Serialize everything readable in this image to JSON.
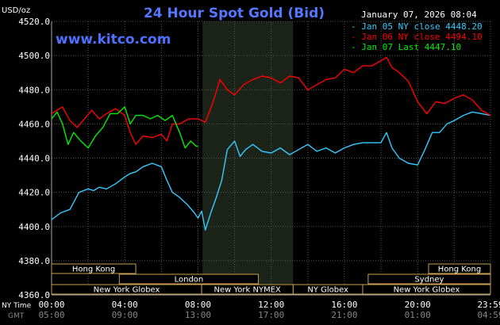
{
  "chart_data": {
    "type": "line",
    "title": "24 Hour Spot Gold (Bid)",
    "date": "January 07, 2026 08:04",
    "ylabel": "USD/oz",
    "watermark": "www.kitco.com",
    "ylim": [
      4360,
      4520
    ],
    "y_ticks": [
      "4520.0",
      "4500.0",
      "4480.0",
      "4460.0",
      "4440.0",
      "4420.0",
      "4400.0",
      "4380.0",
      "4360.0"
    ],
    "y_tick_values": [
      4520,
      4500,
      4480,
      4460,
      4440,
      4420,
      4400,
      4380,
      4360
    ],
    "x_ticks_ny": [
      "00:00",
      "04:00",
      "08:00",
      "12:00",
      "16:00",
      "20:00",
      "23:59"
    ],
    "x_ticks_gmt": [
      "05:00",
      "09:00",
      "13:00",
      "17:00",
      "21:00",
      "01:00",
      "04:59"
    ],
    "x_tick_hours": [
      0,
      4,
      8,
      12,
      16,
      20,
      23.983
    ],
    "x_row_labels": {
      "ny": "NY Time",
      "gmt": "GMT"
    },
    "highlight_range_hours": [
      8.25,
      13.2
    ],
    "grid": true,
    "legend_position": "top-right",
    "series": [
      {
        "name": "Jan 05 NY close 4448.20",
        "color": "#33ccff",
        "x": [
          0,
          0.5,
          1,
          1.5,
          2,
          2.3,
          2.6,
          3,
          3.5,
          4,
          4.3,
          4.6,
          5,
          5.5,
          6,
          6.3,
          6.6,
          7,
          7.4,
          7.8,
          8,
          8.2,
          8.4,
          8.7,
          9,
          9.3,
          9.6,
          10,
          10.3,
          10.6,
          11,
          11.5,
          12,
          12.5,
          13,
          13.5,
          14,
          14.5,
          15,
          15.5,
          16,
          16.5,
          17,
          17.5,
          18,
          18.3,
          18.6,
          19,
          19.5,
          20,
          20.4,
          20.8,
          21.2,
          21.6,
          22,
          22.5,
          23,
          23.5,
          23.983
        ],
        "values": [
          4404,
          4408,
          4410,
          4420,
          4422,
          4421,
          4423,
          4422,
          4425,
          4429,
          4431,
          4432,
          4435,
          4437,
          4435,
          4427,
          4420,
          4417,
          4413,
          4408,
          4405,
          4409,
          4398,
          4408,
          4417,
          4427,
          4445,
          4450,
          4441,
          4445,
          4448,
          4444,
          4443,
          4446,
          4442,
          4445,
          4448,
          4444,
          4446,
          4443,
          4446,
          4448,
          4449,
          4449,
          4449,
          4455,
          4446,
          4440,
          4437,
          4436,
          4445,
          4455,
          4455,
          4460,
          4462,
          4465,
          4467,
          4466,
          4465
        ]
      },
      {
        "name": "Jan 06 NY close 4494.10",
        "color": "#ff0000",
        "x": [
          0,
          0.3,
          0.6,
          1,
          1.4,
          1.8,
          2.2,
          2.6,
          3,
          3.5,
          4,
          4.3,
          4.6,
          5,
          5.5,
          6,
          6.3,
          6.6,
          7,
          7.5,
          8,
          8.4,
          8.8,
          9.2,
          9.6,
          10,
          10.5,
          11,
          11.5,
          12,
          12.5,
          13,
          13.5,
          14,
          14.5,
          15,
          15.5,
          16,
          16.5,
          17,
          17.5,
          18,
          18.3,
          18.6,
          19,
          19.5,
          20,
          20.5,
          21,
          21.5,
          22,
          22.5,
          23,
          23.5,
          23.983
        ],
        "values": [
          4466,
          4468,
          4470,
          4462,
          4458,
          4463,
          4468,
          4463,
          4466,
          4469,
          4465,
          4455,
          4448,
          4453,
          4452,
          4454,
          4450,
          4460,
          4460,
          4463,
          4463,
          4461,
          4472,
          4486,
          4480,
          4477,
          4483,
          4486,
          4488,
          4487,
          4484,
          4488,
          4487,
          4480,
          4483,
          4486,
          4487,
          4492,
          4490,
          4494,
          4494,
          4497,
          4499,
          4493,
          4490,
          4485,
          4473,
          4466,
          4473,
          4472,
          4475,
          4477,
          4474,
          4468,
          4465
        ]
      },
      {
        "name": "Jan 07 Last 4447.10",
        "color": "#00ee00",
        "x": [
          0,
          0.3,
          0.6,
          0.9,
          1.2,
          1.6,
          2,
          2.4,
          2.8,
          3.2,
          3.6,
          4,
          4.3,
          4.6,
          5,
          5.4,
          5.8,
          6.2,
          6.6,
          7,
          7.3,
          7.6,
          7.9,
          8
        ],
        "values": [
          4463,
          4467,
          4460,
          4448,
          4455,
          4450,
          4446,
          4453,
          4458,
          4466,
          4466,
          4470,
          4460,
          4465,
          4465,
          4463,
          4465,
          4462,
          4465,
          4455,
          4446,
          4450,
          4447,
          4447
        ]
      }
    ]
  },
  "market_bars": [
    {
      "label": "Hong Kong",
      "row": 0,
      "start": 0,
      "end": 4.6
    },
    {
      "label": "Hong Kong",
      "row": 0,
      "start": 20.6,
      "end": 23.983
    },
    {
      "label": "London",
      "row": 1,
      "start": 3.7,
      "end": 11.3
    },
    {
      "label": "Sydney",
      "row": 1,
      "start": 17.3,
      "end": 23.983
    },
    {
      "label": "New York Globex",
      "row": 2,
      "start": 0,
      "end": 8.2
    },
    {
      "label": "New York NYMEX",
      "row": 2,
      "start": 8.2,
      "end": 13.2
    },
    {
      "label": "NY Globex",
      "row": 2,
      "start": 13.2,
      "end": 17.0
    },
    {
      "label": "New York Globex",
      "row": 2,
      "start": 17.0,
      "end": 23.983
    }
  ]
}
